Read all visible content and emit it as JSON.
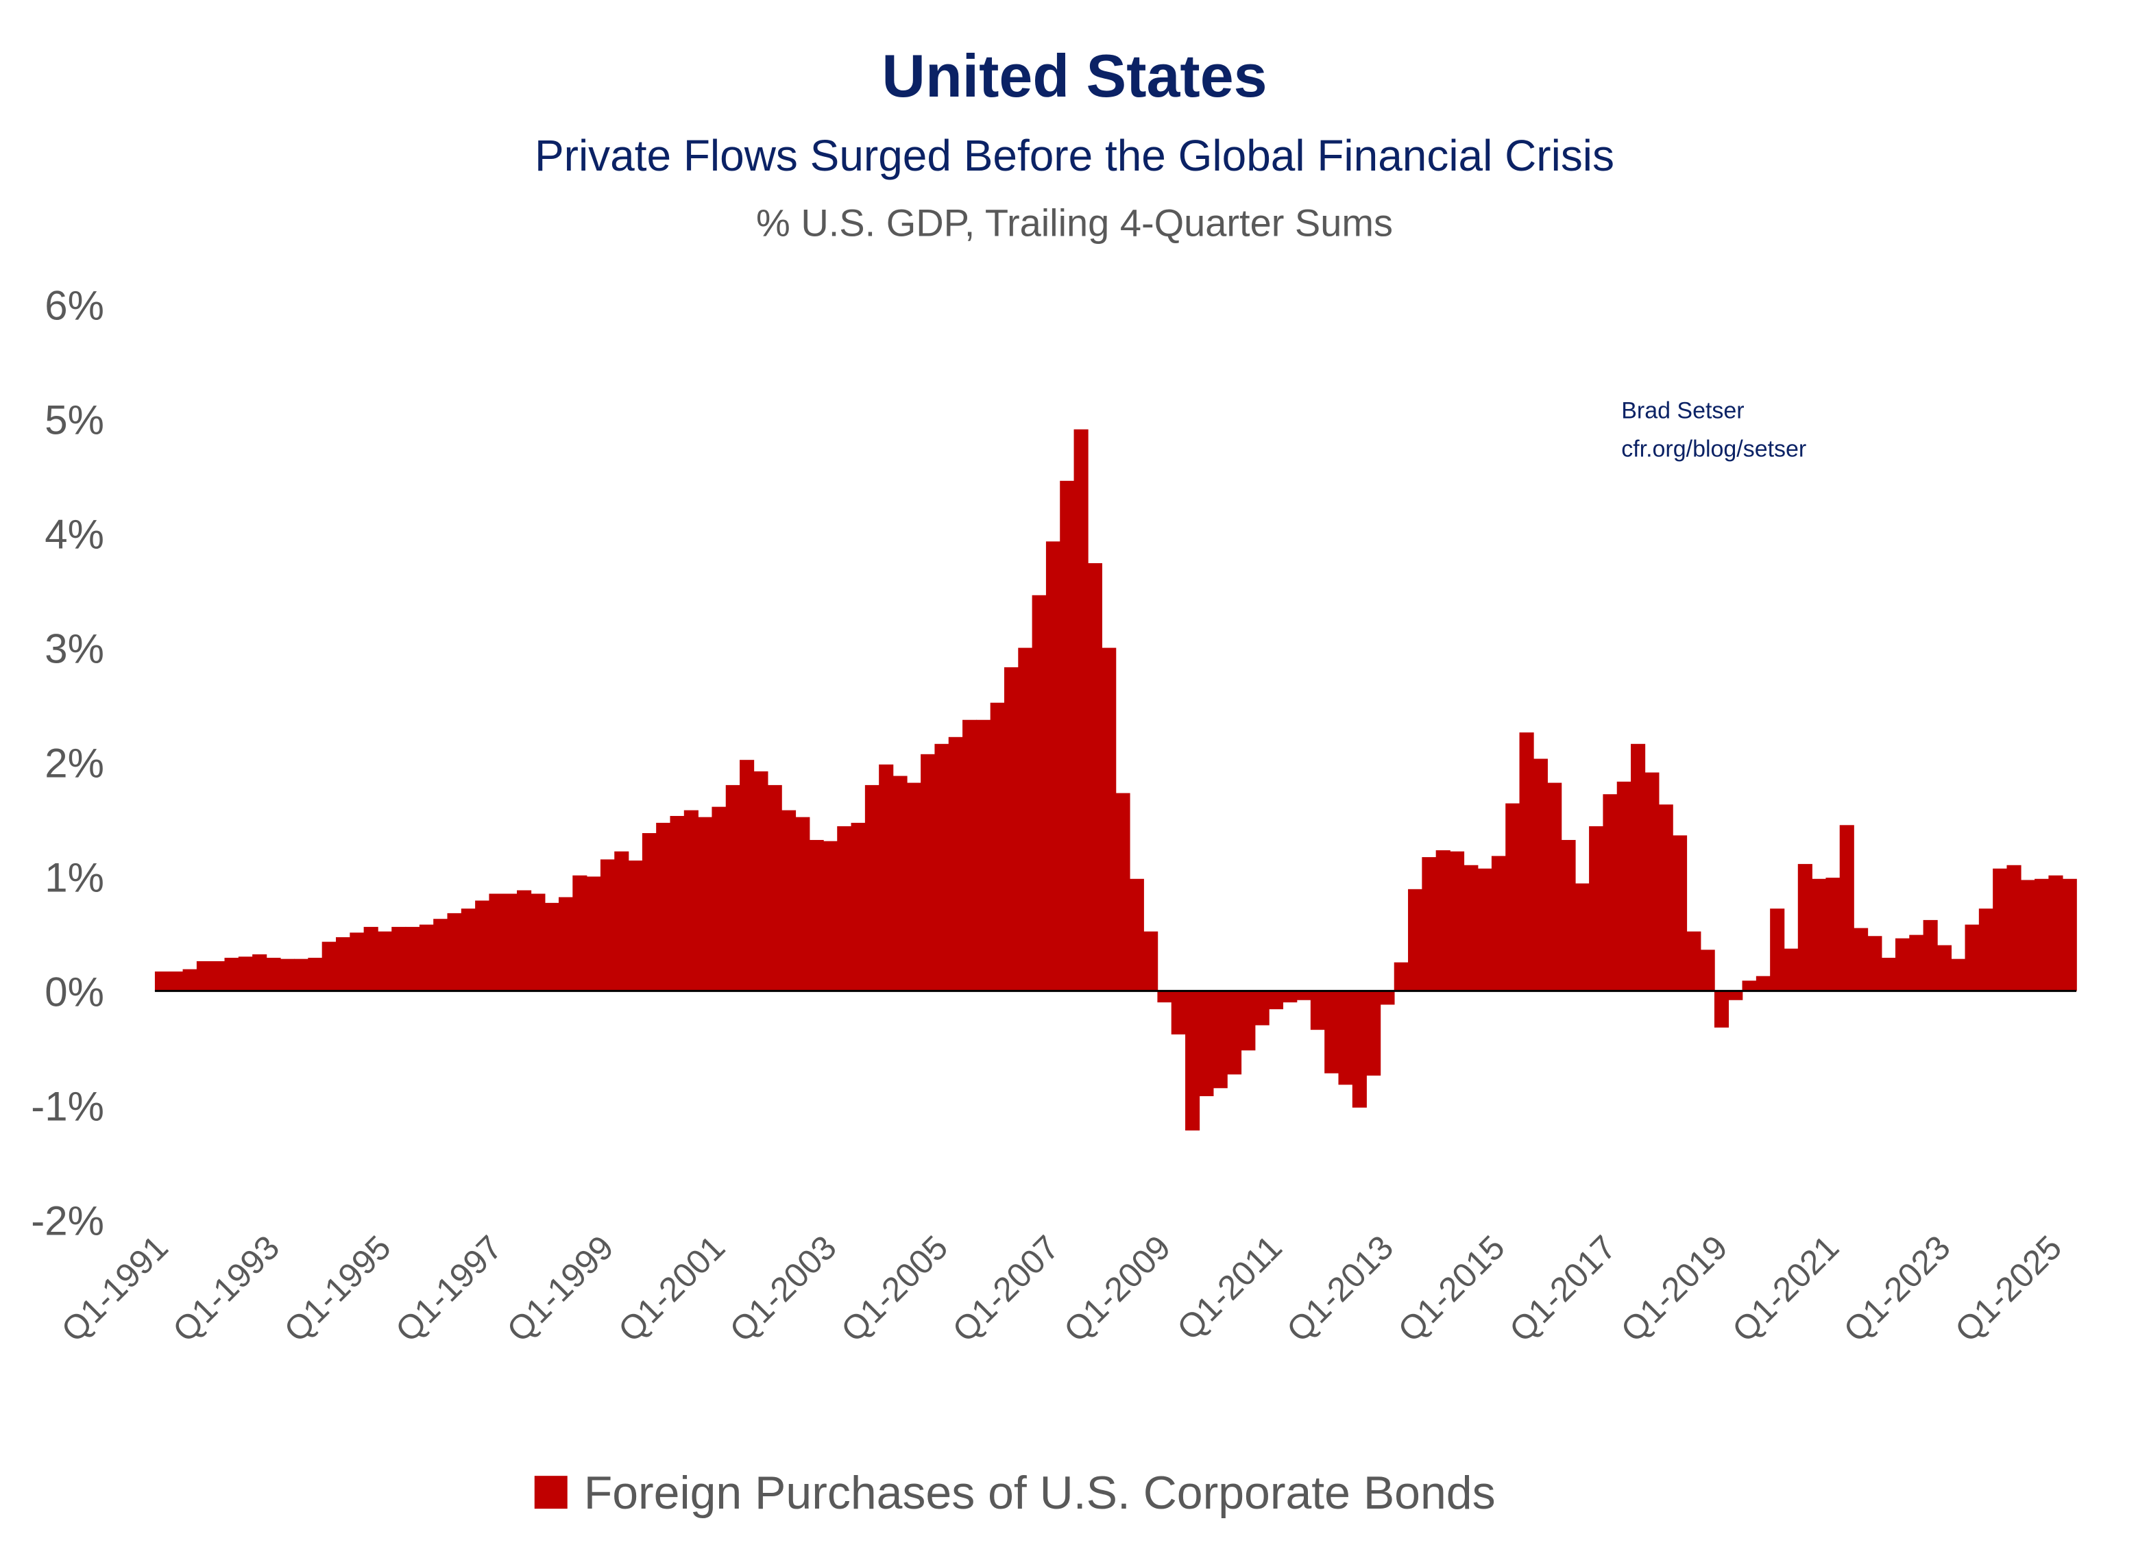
{
  "chart_data": {
    "type": "bar",
    "title": "United States",
    "subtitle": "Private Flows Surged Before the Global Financial Crisis",
    "units_note": "% U.S. GDP, Trailing 4-Quarter Sums",
    "annotation": [
      "Brad Setser",
      "cfr.org/blog/setser"
    ],
    "xlabel": "",
    "ylabel": "",
    "ylim": [
      -2,
      6
    ],
    "yticks": [
      6,
      5,
      4,
      3,
      2,
      1,
      0,
      -1,
      -2
    ],
    "ytick_labels": [
      "6%",
      "5%",
      "4%",
      "3%",
      "2%",
      "1%",
      "0%",
      "-1%",
      "-2%"
    ],
    "x_start": "Q1-1991",
    "xtick_labels": [
      "Q1-1991",
      "Q1-1993",
      "Q1-1995",
      "Q1-1997",
      "Q1-1999",
      "Q1-2001",
      "Q1-2003",
      "Q1-2005",
      "Q1-2007",
      "Q1-2009",
      "Q1-2011",
      "Q1-2013",
      "Q1-2015",
      "Q1-2017",
      "Q1-2019",
      "Q1-2021",
      "Q1-2023",
      "Q1-2025"
    ],
    "legend": {
      "position": "bottom",
      "entries": [
        {
          "name": "Foreign Purchases of U.S. Corporate Bonds",
          "color": "#c00000"
        }
      ]
    },
    "series": [
      {
        "name": "Foreign Purchases of U.S. Corporate Bonds",
        "color": "#c00000",
        "values": [
          0.17,
          0.17,
          0.19,
          0.26,
          0.26,
          0.29,
          0.3,
          0.32,
          0.29,
          0.28,
          0.28,
          0.29,
          0.43,
          0.47,
          0.51,
          0.56,
          0.52,
          0.56,
          0.56,
          0.58,
          0.63,
          0.68,
          0.72,
          0.79,
          0.85,
          0.85,
          0.88,
          0.85,
          0.77,
          0.82,
          1.01,
          1.0,
          1.15,
          1.22,
          1.14,
          1.38,
          1.47,
          1.53,
          1.58,
          1.52,
          1.61,
          1.8,
          2.02,
          1.92,
          1.8,
          1.58,
          1.52,
          1.32,
          1.31,
          1.44,
          1.47,
          1.8,
          1.98,
          1.88,
          1.82,
          2.07,
          2.16,
          2.22,
          2.37,
          2.37,
          2.52,
          2.83,
          3.0,
          3.46,
          3.93,
          4.46,
          4.91,
          3.74,
          3.0,
          1.73,
          0.98,
          0.52,
          -0.1,
          -0.38,
          -1.22,
          -0.92,
          -0.85,
          -0.73,
          -0.52,
          -0.3,
          -0.16,
          -0.1,
          -0.08,
          -0.34,
          -0.72,
          -0.82,
          -1.02,
          -0.74,
          -0.12,
          0.25,
          0.89,
          1.17,
          1.23,
          1.22,
          1.1,
          1.07,
          1.18,
          1.64,
          2.26,
          2.03,
          1.82,
          1.32,
          0.94,
          1.44,
          1.72,
          1.83,
          2.16,
          1.91,
          1.63,
          1.36,
          0.52,
          0.36,
          -0.32,
          -0.08,
          0.09,
          0.13,
          0.72,
          0.37,
          1.11,
          0.98,
          0.99,
          1.45,
          0.55,
          0.48,
          0.29,
          0.46,
          0.49,
          0.62,
          0.4,
          0.28,
          0.58,
          0.72,
          1.07,
          1.1,
          0.97,
          0.98,
          1.01,
          0.98
        ]
      }
    ]
  }
}
